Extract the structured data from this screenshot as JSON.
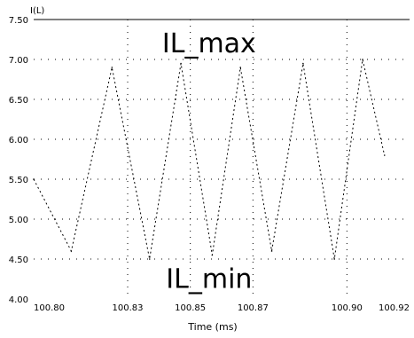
{
  "chart_data": {
    "type": "line",
    "trace_name": "I(L)",
    "xlabel": "Time (ms)",
    "xlim": [
      100.8,
      100.92
    ],
    "ylim": [
      4.0,
      7.5
    ],
    "x_ticks": [
      "100.80",
      "100.83",
      "100.85",
      "100.87",
      "100.90",
      "100.92"
    ],
    "y_ticks": [
      "4.00",
      "4.50",
      "5.00",
      "5.50",
      "6.00",
      "6.50",
      "7.00",
      "7.50"
    ],
    "grid": true,
    "annotations": [
      {
        "text": "IL_max",
        "x": 100.856,
        "y": 7.2
      },
      {
        "text": "IL_min",
        "x": 100.856,
        "y": 4.25
      }
    ],
    "series": [
      {
        "x": [
          100.8,
          100.812,
          100.825,
          100.837,
          100.847,
          100.857,
          100.866,
          100.876,
          100.886,
          100.896,
          100.905,
          100.912
        ],
        "y": [
          5.5,
          4.6,
          6.9,
          4.5,
          6.95,
          4.55,
          6.9,
          4.6,
          6.95,
          4.5,
          7.0,
          5.8
        ]
      }
    ]
  }
}
